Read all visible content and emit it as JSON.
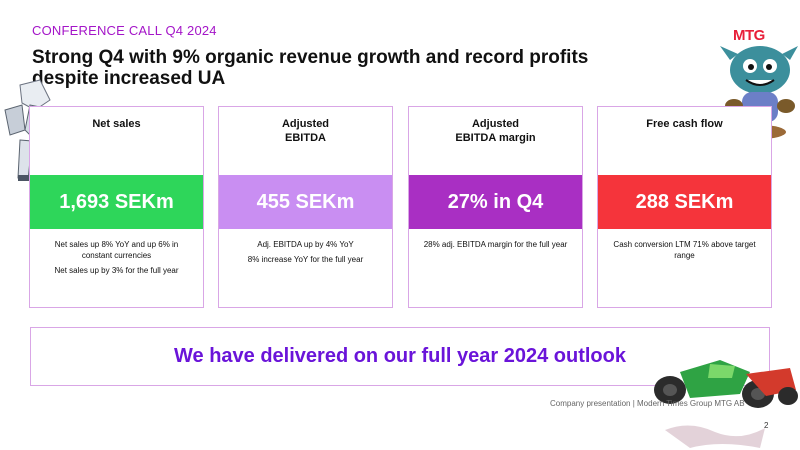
{
  "header": {
    "eyebrow": "CONFERENCE CALL Q4 2024",
    "headline": "Strong Q4 with 9% organic revenue growth and record profits despite increased UA",
    "logo_text": "MTG"
  },
  "cards": [
    {
      "title": "Net sales",
      "value": "1,693 SEKm",
      "band_color": "#2ed65a",
      "notes": [
        "Net sales up 8% YoY and up 6% in constant currencies",
        "Net sales up by 3% for the full year"
      ]
    },
    {
      "title": "Adjusted\nEBITDA",
      "value": "455 SEKm",
      "band_color": "#c98ef2",
      "notes": [
        "Adj. EBITDA up by 4% YoY",
        "8% increase YoY for the full year"
      ]
    },
    {
      "title": "Adjusted\nEBITDA margin",
      "value": "27% in Q4",
      "band_color": "#a92fc3",
      "notes": [
        "28% adj. EBITDA margin for the full year"
      ]
    },
    {
      "title": "Free cash flow",
      "value": "288 SEKm",
      "band_color": "#f5343b",
      "notes": [
        "Cash conversion LTM 71% above target range"
      ]
    }
  ],
  "outlook": {
    "text": "We have delivered on our full year 2024 outlook"
  },
  "footer": {
    "text": "Company presentation | Modern Times Group MTG AB",
    "page": "2"
  },
  "colors": {
    "accent_purple": "#a415c8",
    "outlook_text": "#6a14d9",
    "border": "#d9a6e6",
    "logo_red": "#e8203a"
  },
  "icons": [
    "robot-mech-illustration",
    "monster-mascot-illustration",
    "race-car-illustration",
    "splash-decoration"
  ]
}
